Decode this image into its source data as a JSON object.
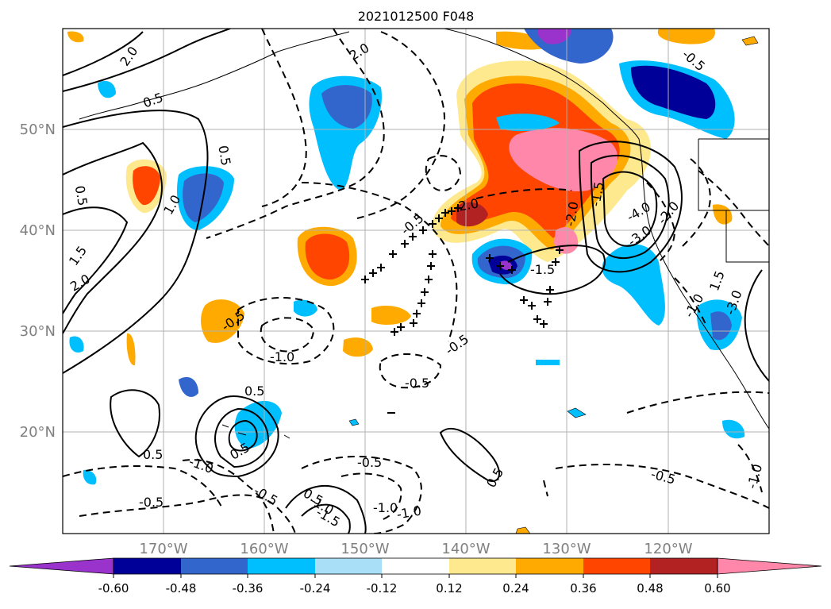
{
  "title": "2021012500 F048",
  "lat_labels": [
    "50°N",
    "40°N",
    "30°N",
    "20°N"
  ],
  "lon_labels": [
    "170°W",
    "160°W",
    "150°W",
    "140°W",
    "130°W",
    "120°W"
  ],
  "colorbar": {
    "colors": [
      "#9933cc",
      "#000099",
      "#3366cc",
      "#00bfff",
      "#aadff8",
      "#ffffff",
      "#ffe98f",
      "#ffaa00",
      "#ff4500",
      "#b22222",
      "#ff88aa"
    ],
    "ticks": [
      "-0.60",
      "-0.48",
      "-0.36",
      "-0.24",
      "-0.12",
      "0.12",
      "0.24",
      "0.36",
      "0.48",
      "0.60"
    ]
  },
  "contour_labels": [
    "2.0",
    "0.5",
    "0.5",
    "1.0",
    "1.5",
    "2.0",
    "0.5",
    "0.5",
    "-0.5",
    "-1.0",
    "-0.5",
    "-0.5",
    "0.5",
    "-1.0",
    "-0.5",
    "-0.5",
    "-1.0",
    "-1.5",
    "-0.5",
    "-1.0",
    "-0.5",
    "0.5",
    "-0.5",
    "-0.5",
    "0.5",
    "-1.0",
    "0.5",
    "-1.0",
    "-1.5",
    "-3.0",
    "-2.0",
    "-4.0",
    "-3.0",
    "-1.5",
    "-2.0",
    "-1.0",
    "1.5",
    "2.0",
    "-2.0"
  ]
}
